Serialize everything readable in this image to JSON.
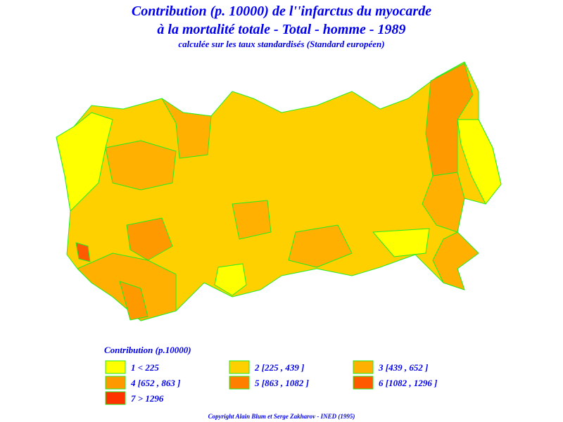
{
  "header": {
    "title_line1": "Contribution (p. 10000) de l''infarctus du myocarde",
    "title_line2": "à la mortalité totale - Total - homme - 1989",
    "subtitle": "calculée sur les taux standardisés (Standard européen)"
  },
  "legend": {
    "title": "Contribution  (p.10000)",
    "items": [
      {
        "label": "1  <  225",
        "color": "#ffff00"
      },
      {
        "label": "2  [225 , 439 ]",
        "color": "#ffd000"
      },
      {
        "label": "3  [439 , 652 ]",
        "color": "#ffb000"
      },
      {
        "label": "4  [652 , 863 ]",
        "color": "#ff9900"
      },
      {
        "label": "5  [863 , 1082 ]",
        "color": "#ff7f00"
      },
      {
        "label": "6  [1082 , 1296 ]",
        "color": "#ff5a00"
      },
      {
        "label": "7  >  1296",
        "color": "#ff3300"
      }
    ]
  },
  "footer": {
    "copyright": "Copyright Alain Blum et Serge Zakharov - INED (1995)"
  }
}
